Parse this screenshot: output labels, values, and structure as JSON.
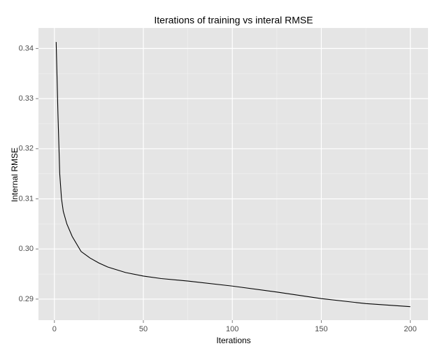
{
  "chart_data": {
    "type": "line",
    "title": "Iterations of training vs interal RMSE",
    "x_label": "Iterations",
    "y_label": "Internal RMSE",
    "x": [
      1,
      2,
      3,
      4,
      5,
      7,
      10,
      15,
      20,
      25,
      30,
      40,
      50,
      60,
      75,
      100,
      125,
      150,
      175,
      200
    ],
    "values": [
      0.3413,
      0.327,
      0.315,
      0.31,
      0.3075,
      0.305,
      0.3025,
      0.2995,
      0.2982,
      0.2972,
      0.2964,
      0.2953,
      0.2946,
      0.2941,
      0.2936,
      0.2926,
      0.2914,
      0.2901,
      0.2891,
      0.2885
    ],
    "color": "#000000",
    "xlim": [
      -8.95,
      209.95
    ],
    "ylim": [
      0.2858,
      0.3441
    ],
    "xticks": [
      0,
      50,
      100,
      150,
      200
    ],
    "yticks": [
      0.29,
      {
        "value": 0.3,
        "label": "0.30"
      },
      0.31,
      0.32,
      0.33,
      0.34
    ],
    "xminorticks": [
      25,
      75,
      125,
      175
    ],
    "yminorticks": [
      0.295,
      0.305,
      0.315,
      0.325,
      0.335
    ],
    "grid": true
  }
}
